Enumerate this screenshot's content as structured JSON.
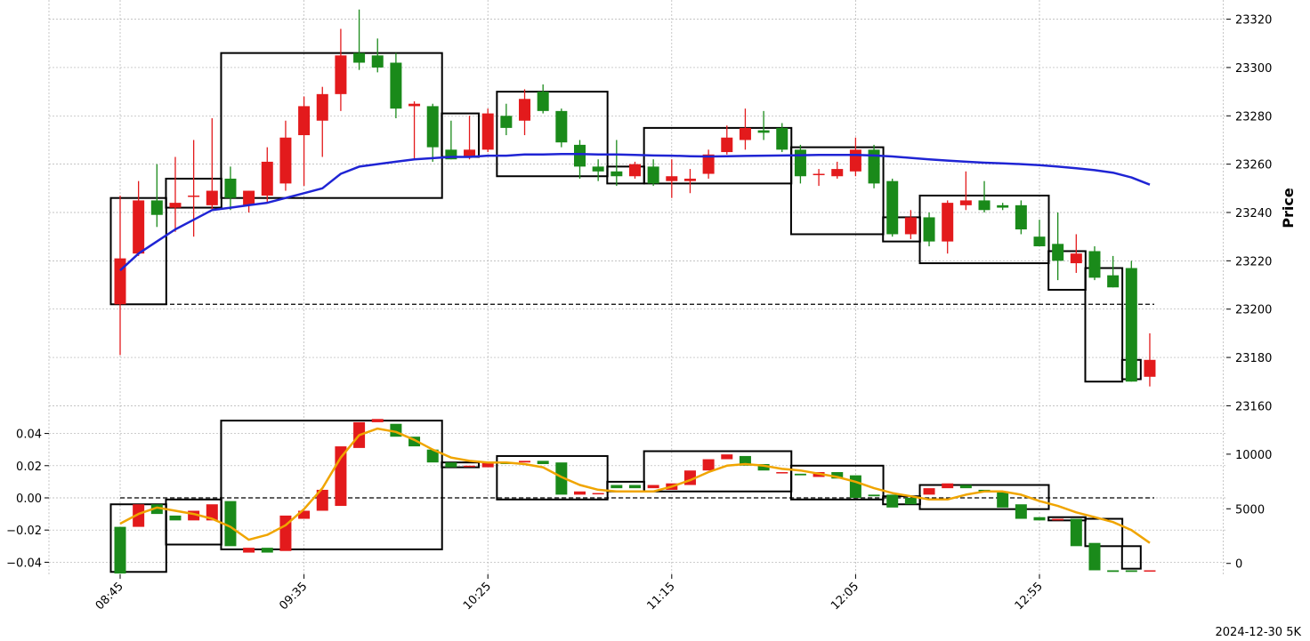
{
  "chart_data": {
    "type": "candlestick",
    "footnote": "2024-12-30 5K",
    "ylabel": "Price",
    "colors": {
      "up": "#e31a1c",
      "down": "#1a8a1a",
      "ma": "#1f24d4",
      "osc_line": "#f0a500",
      "box": "#000000"
    },
    "times": [
      "08:45",
      "08:50",
      "08:55",
      "09:00",
      "09:05",
      "09:10",
      "09:15",
      "09:20",
      "09:25",
      "09:30",
      "09:35",
      "09:40",
      "09:45",
      "09:50",
      "09:55",
      "10:00",
      "10:05",
      "10:10",
      "10:15",
      "10:20",
      "10:25",
      "10:30",
      "10:35",
      "10:40",
      "10:45",
      "10:50",
      "10:55",
      "11:00",
      "11:05",
      "11:10",
      "11:15",
      "11:20",
      "11:25",
      "11:30",
      "11:35",
      "11:40",
      "11:45",
      "11:50",
      "11:55",
      "12:00",
      "12:05",
      "12:10",
      "12:15",
      "12:20",
      "12:25",
      "12:30",
      "12:35",
      "12:40",
      "12:45",
      "12:50",
      "12:55",
      "13:00",
      "13:05",
      "13:10",
      "13:15",
      "13:20",
      "13:25",
      "13:30",
      "13:35",
      "13:40"
    ],
    "x_ticks": [
      "08:45",
      "09:35",
      "10:25",
      "11:15",
      "12:05",
      "12:55"
    ],
    "price_axis": {
      "ylim": [
        23155,
        23325
      ],
      "ticks": [
        23160,
        23180,
        23200,
        23220,
        23240,
        23260,
        23280,
        23300,
        23320
      ]
    },
    "candles": [
      [
        23202,
        23247,
        23181,
        23221
      ],
      [
        23223,
        23253,
        23222,
        23245
      ],
      [
        23245,
        23260,
        23234,
        23239
      ],
      [
        23242,
        23263,
        23232,
        23244
      ],
      [
        23247,
        23270,
        23230,
        23247
      ],
      [
        23243,
        23279,
        23241,
        23249
      ],
      [
        23254,
        23259,
        23241,
        23246
      ],
      [
        23243,
        23249,
        23240,
        23249
      ],
      [
        23247,
        23267,
        23244,
        23261
      ],
      [
        23252,
        23278,
        23249,
        23271
      ],
      [
        23272,
        23288,
        23251,
        23284
      ],
      [
        23278,
        23292,
        23263,
        23289
      ],
      [
        23289,
        23316,
        23282,
        23305
      ],
      [
        23306,
        23324,
        23299,
        23302
      ],
      [
        23305,
        23312,
        23298,
        23300
      ],
      [
        23302,
        23306,
        23279,
        23283
      ],
      [
        23284,
        23286,
        23262,
        23285
      ],
      [
        23284,
        23285,
        23261,
        23267
      ],
      [
        23266,
        23278,
        23262,
        23262
      ],
      [
        23263,
        23280,
        23262,
        23266
      ],
      [
        23266,
        23283,
        23265,
        23281
      ],
      [
        23280,
        23285,
        23272,
        23275
      ],
      [
        23278,
        23291,
        23272,
        23287
      ],
      [
        23290,
        23293,
        23281,
        23282
      ],
      [
        23282,
        23283,
        23267,
        23269
      ],
      [
        23268,
        23270,
        23254,
        23259
      ],
      [
        23259,
        23262,
        23253,
        23257
      ],
      [
        23257,
        23270,
        23251,
        23255
      ],
      [
        23255,
        23261,
        23254,
        23260
      ],
      [
        23259,
        23262,
        23251,
        23252
      ],
      [
        23253,
        23262,
        23246,
        23255
      ],
      [
        23253,
        23258,
        23248,
        23254
      ],
      [
        23256,
        23266,
        23254,
        23264
      ],
      [
        23265,
        23276,
        23264,
        23271
      ],
      [
        23270,
        23283,
        23266,
        23275
      ],
      [
        23274,
        23282,
        23270,
        23273
      ],
      [
        23275,
        23277,
        23265,
        23266
      ],
      [
        23266,
        23268,
        23252,
        23255
      ],
      [
        23256,
        23258,
        23251,
        23256
      ],
      [
        23255,
        23261,
        23254,
        23258
      ],
      [
        23257,
        23271,
        23255,
        23266
      ],
      [
        23266,
        23268,
        23250,
        23252
      ],
      [
        23253,
        23254,
        23230,
        23231
      ],
      [
        23231,
        23241,
        23229,
        23238
      ],
      [
        23238,
        23240,
        23226,
        23228
      ],
      [
        23228,
        23245,
        23223,
        23244
      ],
      [
        23243,
        23257,
        23241,
        23245
      ],
      [
        23245,
        23253,
        23240,
        23241
      ],
      [
        23243,
        23244,
        23241,
        23242
      ],
      [
        23243,
        23245,
        23231,
        23233
      ],
      [
        23230,
        23237,
        23226,
        23226
      ],
      [
        23227,
        23240,
        23212,
        23220
      ],
      [
        23219,
        23231,
        23215,
        23223
      ],
      [
        23224,
        23226,
        23212,
        23213
      ],
      [
        23214,
        23222,
        23209,
        23209
      ],
      [
        23217,
        23220,
        23170,
        23170
      ],
      [
        23172,
        23190,
        23168,
        23179
      ]
    ],
    "ma_values": [
      23216,
      23223,
      23228,
      23233,
      23237,
      23241,
      23242,
      23243,
      23244,
      23246,
      23248,
      23250,
      23256,
      23259,
      23260,
      23261,
      23262,
      23262.5,
      23263,
      23263,
      23263.5,
      23263.5,
      23264,
      23264,
      23264.2,
      23264.2,
      23264,
      23264,
      23263.8,
      23263.6,
      23263.5,
      23263.3,
      23263.2,
      23263.3,
      23263.4,
      23263.5,
      23263.6,
      23263.7,
      23263.8,
      23263.8,
      23263.8,
      23263.6,
      23263.2,
      23262.6,
      23262,
      23261.5,
      23261,
      23260.6,
      23260.3,
      23260,
      23259.6,
      23259,
      23258.3,
      23257.5,
      23256.5,
      23254.5,
      23251.5
    ],
    "price_boxes": [
      {
        "i0": 0,
        "i1": 2,
        "high": 23246,
        "low": 23202
      },
      {
        "i0": 3,
        "i1": 5,
        "high": 23254,
        "low": 23242
      },
      {
        "i0": 6,
        "i1": 17,
        "high": 23306,
        "low": 23246
      },
      {
        "i0": 18,
        "i1": 19,
        "high": 23281,
        "low": 23263
      },
      {
        "i0": 21,
        "i1": 26,
        "high": 23290,
        "low": 23255
      },
      {
        "i0": 27,
        "i1": 28,
        "high": 23259,
        "low": 23252
      },
      {
        "i0": 29,
        "i1": 36,
        "high": 23275,
        "low": 23252
      },
      {
        "i0": 37,
        "i1": 41,
        "high": 23267,
        "low": 23231
      },
      {
        "i0": 42,
        "i1": 43,
        "high": 23238,
        "low": 23228
      },
      {
        "i0": 44,
        "i1": 50,
        "high": 23247,
        "low": 23219
      },
      {
        "i0": 51,
        "i1": 52,
        "high": 23224,
        "low": 23208
      },
      {
        "i0": 53,
        "i1": 54,
        "high": 23217,
        "low": 23170
      },
      {
        "i0": 55,
        "i1": 55,
        "high": 23179,
        "low": 23171
      }
    ],
    "price_reference_line": 23202,
    "oscillator": {
      "left_axis": {
        "ylim": [
          -0.0475,
          0.0475
        ],
        "ticks": [
          -0.04,
          -0.02,
          0.0,
          0.02,
          0.04
        ],
        "tick_labels": [
          "−0.04",
          "−0.02",
          "0.00",
          "0.02",
          "0.04"
        ]
      },
      "right_axis": {
        "ylim": [
          -1000,
          13000
        ],
        "ticks": [
          0,
          5000,
          10000
        ]
      },
      "bars": [
        [
          -0.018,
          -0.047
        ],
        [
          -0.018,
          -0.004
        ],
        [
          -0.004,
          -0.01
        ],
        [
          -0.011,
          -0.014
        ],
        [
          -0.014,
          -0.008
        ],
        [
          -0.014,
          -0.004
        ],
        [
          -0.002,
          -0.03
        ],
        [
          -0.034,
          -0.031
        ],
        [
          -0.031,
          -0.034
        ],
        [
          -0.033,
          -0.011
        ],
        [
          -0.013,
          -0.008
        ],
        [
          -0.008,
          0.005
        ],
        [
          -0.005,
          0.032
        ],
        [
          0.031,
          0.047
        ],
        [
          0.047,
          0.049
        ],
        [
          0.046,
          0.038
        ],
        [
          0.038,
          0.032
        ],
        [
          0.03,
          0.022
        ],
        [
          0.022,
          0.019
        ],
        [
          0.02,
          0.02
        ],
        [
          0.019,
          0.022
        ],
        [
          0.022,
          0.021
        ],
        [
          0.022,
          0.023
        ],
        [
          0.023,
          0.021
        ],
        [
          0.022,
          0.002
        ],
        [
          0.002,
          0.004
        ],
        [
          0.003,
          0.003
        ],
        [
          0.008,
          0.006
        ],
        [
          0.008,
          0.006
        ],
        [
          0.006,
          0.008
        ],
        [
          0.005,
          0.009
        ],
        [
          0.008,
          0.017
        ],
        [
          0.017,
          0.024
        ],
        [
          0.024,
          0.027
        ],
        [
          0.026,
          0.02
        ],
        [
          0.021,
          0.017
        ],
        [
          0.016,
          0.016
        ],
        [
          0.015,
          0.014
        ],
        [
          0.013,
          0.016
        ],
        [
          0.016,
          0.012
        ],
        [
          0.014,
          0.0
        ],
        [
          0.002,
          0.001
        ],
        [
          0.002,
          -0.006
        ],
        [
          0.0,
          -0.004
        ],
        [
          0.002,
          0.006
        ],
        [
          0.006,
          0.009
        ],
        [
          0.008,
          0.006
        ],
        [
          0.005,
          0.004
        ],
        [
          0.004,
          -0.006
        ],
        [
          -0.004,
          -0.013
        ],
        [
          -0.012,
          -0.014
        ],
        [
          -0.014,
          -0.013
        ],
        [
          -0.013,
          -0.03
        ],
        [
          -0.028,
          -0.045
        ],
        [
          -0.045,
          -0.046
        ],
        [
          -0.045,
          -0.046
        ],
        [
          -0.045,
          -0.045
        ]
      ],
      "line_values": [
        -0.016,
        -0.01,
        -0.006,
        -0.008,
        -0.01,
        -0.013,
        -0.018,
        -0.026,
        -0.023,
        -0.017,
        -0.007,
        0.006,
        0.025,
        0.039,
        0.043,
        0.041,
        0.036,
        0.03,
        0.025,
        0.023,
        0.022,
        0.022,
        0.021,
        0.019,
        0.013,
        0.008,
        0.005,
        0.004,
        0.004,
        0.004,
        0.007,
        0.011,
        0.016,
        0.02,
        0.021,
        0.02,
        0.018,
        0.017,
        0.015,
        0.013,
        0.01,
        0.006,
        0.003,
        0.001,
        -0.001,
        -0.001,
        0.002,
        0.004,
        0.004,
        0.002,
        -0.002,
        -0.005,
        -0.009,
        -0.012,
        -0.015,
        -0.02,
        -0.028
      ],
      "reference_line": 0.0,
      "boxes": [
        {
          "i0": 0,
          "i1": 2,
          "high": -0.004,
          "low": -0.046
        },
        {
          "i0": 3,
          "i1": 5,
          "high": -0.001,
          "low": -0.029
        },
        {
          "i0": 6,
          "i1": 17,
          "high": 0.048,
          "low": -0.032
        },
        {
          "i0": 18,
          "i1": 19,
          "high": 0.022,
          "low": 0.019
        },
        {
          "i0": 21,
          "i1": 26,
          "high": 0.026,
          "low": -0.001
        },
        {
          "i0": 27,
          "i1": 28,
          "high": 0.01,
          "low": 0.004
        },
        {
          "i0": 29,
          "i1": 36,
          "high": 0.029,
          "low": 0.004
        },
        {
          "i0": 37,
          "i1": 41,
          "high": 0.02,
          "low": -0.001
        },
        {
          "i0": 42,
          "i1": 43,
          "high": 0.001,
          "low": -0.004
        },
        {
          "i0": 44,
          "i1": 50,
          "high": 0.008,
          "low": -0.007
        },
        {
          "i0": 51,
          "i1": 52,
          "high": -0.012,
          "low": -0.014
        },
        {
          "i0": 53,
          "i1": 54,
          "high": -0.013,
          "low": -0.03
        },
        {
          "i0": 55,
          "i1": 55,
          "high": -0.03,
          "low": -0.044
        }
      ]
    }
  }
}
